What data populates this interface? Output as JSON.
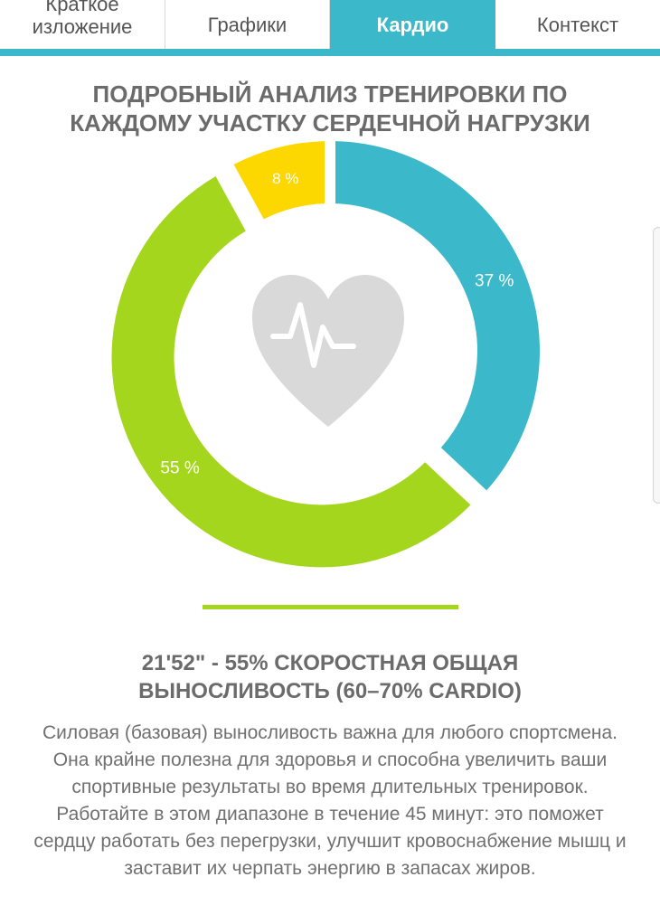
{
  "tabs": {
    "summary": "Краткое\nизложение",
    "charts": "Графики",
    "cardio": "Кардио",
    "context": "Контекст"
  },
  "title": "ПОДРОБНЫЙ АНАЛИЗ ТРЕНИРОВКИ ПО\nКАЖДОМУ УЧАСТКУ СЕРДЕЧНОЙ НАГРУЗКИ",
  "chart_data": {
    "type": "pie",
    "slices": [
      {
        "label": "37 %",
        "value": 37,
        "color": "#3bb9cb"
      },
      {
        "label": "55 %",
        "value": 55,
        "color": "#a5d61e"
      },
      {
        "label": "8 %",
        "value": 8,
        "color": "#fcd800"
      }
    ],
    "center_icon": "heart-pulse-icon",
    "selected_slice": "55 %"
  },
  "colors": {
    "accent": "#3bb9cb",
    "green": "#a5d61e",
    "yellow": "#fcd800",
    "text": "#6b6b6b",
    "icon_gray": "#d9d9d9"
  },
  "zone": {
    "title": "21'52\" - 55% СКОРОСТНАЯ ОБЩАЯ\nВЫНОСЛИВОСТЬ (60–70% CARDIO)",
    "description": "Силовая (базовая) выносливость важна для любого спортсмена. Она крайне полезна для здоровья и способна увеличить ваши спортивные результаты во время длительных тренировок. Работайте в этом диапазоне в течение 45 минут: это поможет сердцу работать без перегрузки, улучшит кровоснабжение мышц и заставит их черпать энергию в запасах жиров."
  }
}
